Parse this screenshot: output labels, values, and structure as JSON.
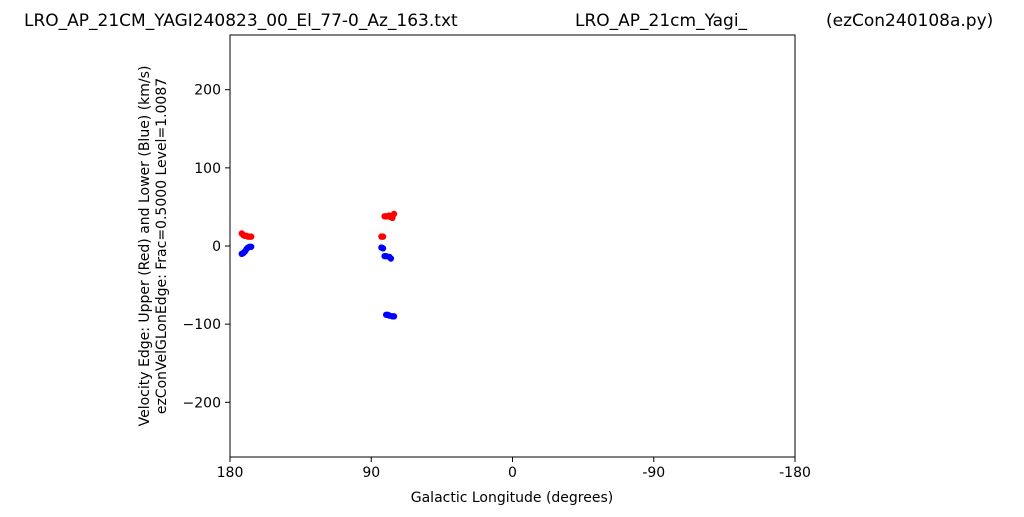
{
  "figure": {
    "title_left": "LRO_AP_21CM_YAGI240823_00_El_77-0_Az_163.txt",
    "title_center": "LRO_AP_21cm_Yagi_",
    "title_right": "(ezCon240108a.py)"
  },
  "chart_data": {
    "type": "scatter",
    "xlabel": "Galactic Longitude (degrees)",
    "ylabel_line1": "Velocity Edge: Upper (Red) and Lower (Blue) (km/s)",
    "ylabel_line2": "ezConVelGLonEdge: Frac=0.5000 Level=1.0087",
    "xlim": [
      180,
      -180
    ],
    "ylim": [
      -270,
      270
    ],
    "x_ticks": [
      180,
      90,
      0,
      -90,
      -180
    ],
    "x_tick_labels": [
      "180",
      "90",
      "0",
      "-90",
      "-180"
    ],
    "y_ticks": [
      200,
      100,
      0,
      -100,
      -200
    ],
    "y_tick_labels": [
      "200",
      "100",
      "0",
      "−100",
      "−200"
    ],
    "grid": false,
    "series": [
      {
        "color": "#ff0000",
        "points": [
          {
            "x": 172.5,
            "y": 16
          },
          {
            "x": 171.5,
            "y": 14
          },
          {
            "x": 170.5,
            "y": 13
          },
          {
            "x": 169.5,
            "y": 13
          },
          {
            "x": 168.5,
            "y": 12
          },
          {
            "x": 167.5,
            "y": 12
          },
          {
            "x": 166.5,
            "y": 12
          },
          {
            "x": 83.5,
            "y": 12
          },
          {
            "x": 82.5,
            "y": 12
          },
          {
            "x": 81.5,
            "y": 38
          },
          {
            "x": 80.5,
            "y": 38
          },
          {
            "x": 79.5,
            "y": 38
          },
          {
            "x": 78.5,
            "y": 39
          },
          {
            "x": 77.5,
            "y": 37
          },
          {
            "x": 76.5,
            "y": 36
          },
          {
            "x": 75.5,
            "y": 41
          }
        ]
      },
      {
        "color": "#0000ff",
        "points": [
          {
            "x": 172.5,
            "y": -10
          },
          {
            "x": 171.5,
            "y": -9
          },
          {
            "x": 170.5,
            "y": -7
          },
          {
            "x": 169.5,
            "y": -4
          },
          {
            "x": 168.5,
            "y": -2
          },
          {
            "x": 167.5,
            "y": -1
          },
          {
            "x": 166.5,
            "y": -1
          },
          {
            "x": 83.5,
            "y": -2
          },
          {
            "x": 82.5,
            "y": -3
          },
          {
            "x": 81.5,
            "y": -13
          },
          {
            "x": 80.5,
            "y": -13
          },
          {
            "x": 78.5,
            "y": -14
          },
          {
            "x": 77.5,
            "y": -16
          },
          {
            "x": 80.5,
            "y": -88
          },
          {
            "x": 79.5,
            "y": -88
          },
          {
            "x": 78.5,
            "y": -89
          },
          {
            "x": 76.5,
            "y": -90
          },
          {
            "x": 75.5,
            "y": -90
          }
        ]
      }
    ]
  }
}
